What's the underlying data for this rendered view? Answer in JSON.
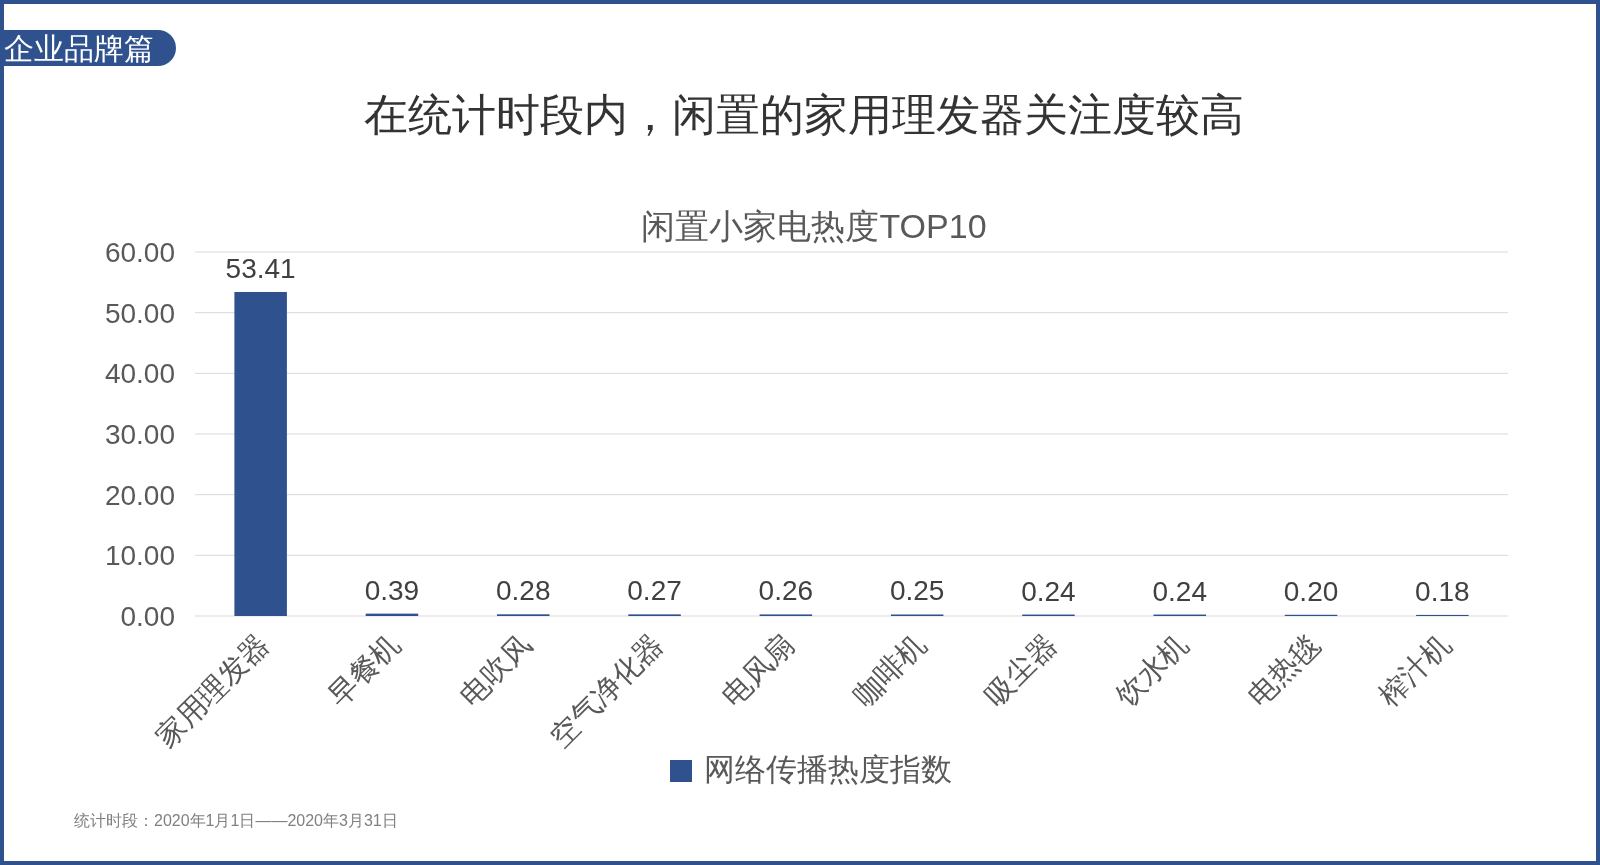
{
  "chart_data": {
    "type": "bar",
    "title": "在统计时段内，闲置的家用理发器关注度较高",
    "subtitle": "闲置小家电热度TOP10",
    "categories": [
      "家用理发器",
      "早餐机",
      "电吹风",
      "空气净化器",
      "电风扇",
      "咖啡机",
      "吸尘器",
      "饮水机",
      "电热毯",
      "榨汁机"
    ],
    "series": [
      {
        "name": "网络传播热度指数",
        "color": "#2f528f",
        "values": [
          53.41,
          0.39,
          0.28,
          0.27,
          0.26,
          0.25,
          0.24,
          0.24,
          0.2,
          0.18
        ],
        "value_labels": [
          "53.41",
          "0.39",
          "0.28",
          "0.27",
          "0.26",
          "0.25",
          "0.24",
          "0.24",
          "0.20",
          "0.18"
        ]
      }
    ],
    "ylim": [
      0,
      60
    ],
    "yticks": [
      {
        "value": 0,
        "label": "0.00"
      },
      {
        "value": 10,
        "label": "10.00"
      },
      {
        "value": 20,
        "label": "20.00"
      },
      {
        "value": 30,
        "label": "30.00"
      },
      {
        "value": 40,
        "label": "40.00"
      },
      {
        "value": 50,
        "label": "50.00"
      },
      {
        "value": 60,
        "label": "60.00"
      }
    ],
    "grid": "y",
    "legend": "bottom",
    "annotations": [
      "企业品牌篇",
      "统计时段：2020年1月1日——2020年3月31日"
    ]
  }
}
